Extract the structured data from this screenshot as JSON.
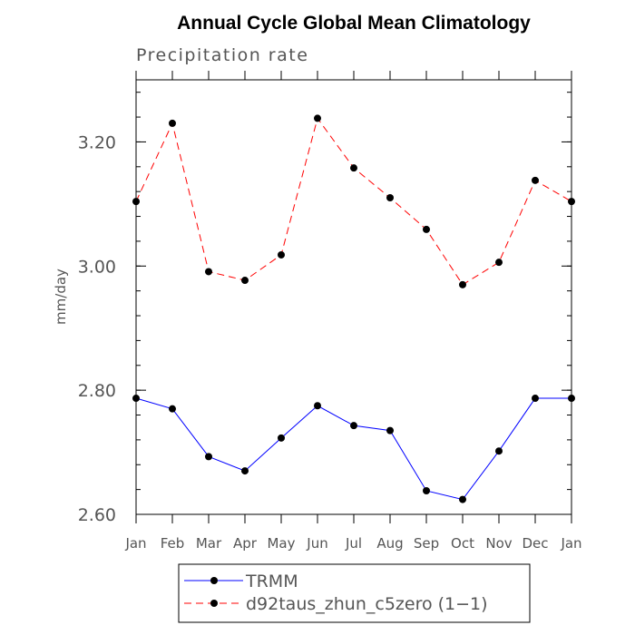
{
  "chart_data": {
    "type": "line",
    "title": "Annual Cycle Global Mean Climatology",
    "subtitle": "Precipitation rate",
    "xlabel": "",
    "ylabel": "mm/day",
    "categories": [
      "Jan",
      "Feb",
      "Mar",
      "Apr",
      "May",
      "Jun",
      "Jul",
      "Aug",
      "Sep",
      "Oct",
      "Nov",
      "Dec",
      "Jan"
    ],
    "ylim": [
      2.6,
      3.3
    ],
    "y_major_ticks": [
      2.6,
      2.8,
      3.0,
      3.2
    ],
    "y_tick_labels": [
      "2.60",
      "2.80",
      "3.00",
      "3.20"
    ],
    "y_minor_step": 0.04,
    "grid": false,
    "legend_position": "bottom",
    "series": [
      {
        "name": "TRMM",
        "color": "#0000ff",
        "dash": "solid",
        "values": [
          2.787,
          2.77,
          2.693,
          2.67,
          2.723,
          2.775,
          2.743,
          2.735,
          2.638,
          2.624,
          2.702,
          2.787,
          2.787
        ]
      },
      {
        "name": "d92taus_zhun_c5zero (1−1)",
        "color": "#ff0000",
        "dash": "dashed",
        "values": [
          3.104,
          3.23,
          2.991,
          2.977,
          3.018,
          3.238,
          3.158,
          3.11,
          3.059,
          2.97,
          3.006,
          3.138,
          3.104
        ]
      }
    ]
  }
}
